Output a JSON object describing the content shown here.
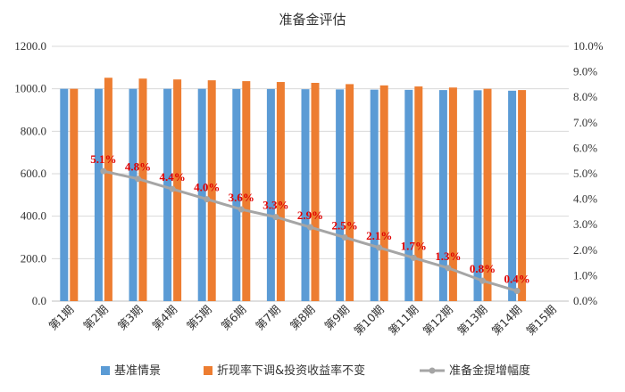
{
  "chart_data": {
    "type": "bar+line",
    "title": "准备金评估",
    "categories": [
      "第1期",
      "第2期",
      "第3期",
      "第4期",
      "第5期",
      "第6期",
      "第7期",
      "第8期",
      "第9期",
      "第10期",
      "第11期",
      "第12期",
      "第13期",
      "第14期",
      "第15期"
    ],
    "series": [
      {
        "name": "基准情景",
        "type": "bar",
        "axis": "left",
        "color": "#5b9bd5",
        "values": [
          1000,
          1000,
          1000,
          1000,
          1000,
          999,
          999,
          998,
          997,
          996,
          995,
          994,
          993,
          991,
          null
        ]
      },
      {
        "name": "折现率下调&投资收益率不变",
        "type": "bar",
        "axis": "left",
        "color": "#ed7d31",
        "values": [
          1000,
          1052,
          1048,
          1044,
          1040,
          1036,
          1032,
          1028,
          1022,
          1016,
          1011,
          1006,
          1000,
          994,
          null
        ]
      },
      {
        "name": "准备金提增幅度",
        "type": "line",
        "axis": "right",
        "color": "#a5a5a5",
        "values": [
          null,
          0.051,
          0.048,
          0.044,
          0.04,
          0.036,
          0.033,
          0.029,
          0.025,
          0.021,
          0.017,
          0.013,
          0.008,
          0.004,
          null
        ],
        "labels": [
          null,
          "5.1%",
          "4.8%",
          "4.4%",
          "4.0%",
          "3.6%",
          "3.3%",
          "2.9%",
          "2.5%",
          "2.1%",
          "1.7%",
          "1.3%",
          "0.8%",
          "0.4%",
          null
        ]
      }
    ],
    "y_left": {
      "min": 0,
      "max": 1200,
      "step": 200,
      "ticks": [
        "0.0",
        "200.0",
        "400.0",
        "600.0",
        "800.0",
        "1000.0",
        "1200.0"
      ]
    },
    "y_right": {
      "min": 0,
      "max": 0.1,
      "step": 0.01,
      "ticks": [
        "0.0%",
        "1.0%",
        "2.0%",
        "3.0%",
        "4.0%",
        "5.0%",
        "6.0%",
        "7.0%",
        "8.0%",
        "9.0%",
        "10.0%"
      ]
    },
    "grid": true,
    "legend": {
      "position": "bottom"
    }
  }
}
